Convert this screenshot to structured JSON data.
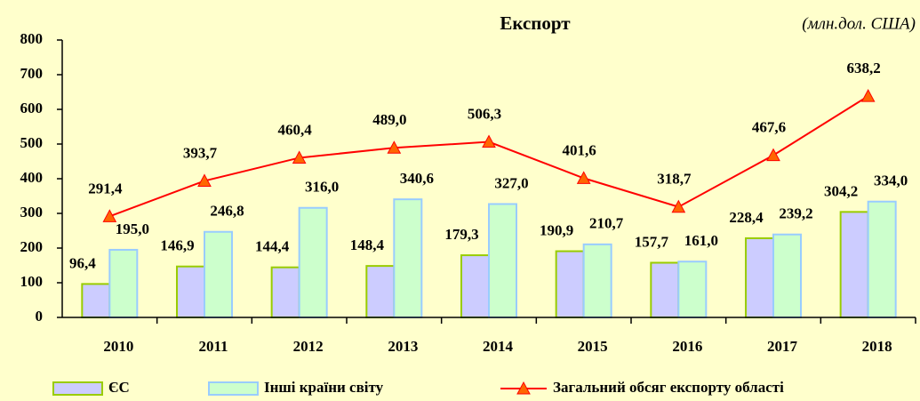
{
  "chart_data": {
    "type": "bar",
    "title": "Експорт",
    "subtitle": "(млн.дол. США)",
    "categories": [
      "2010",
      "2011",
      "2012",
      "2013",
      "2014",
      "2015",
      "2016",
      "2017",
      "2018"
    ],
    "series": [
      {
        "name": "ЄС",
        "type": "bar",
        "color": "#ccccff",
        "edge": "#99cc00",
        "values": [
          96.4,
          146.9,
          144.4,
          148.4,
          179.3,
          190.9,
          157.7,
          228.4,
          304.2
        ],
        "value_labels": [
          "96,4",
          "146,9",
          "144,4",
          "148,4",
          "179,3",
          "190,9",
          "157,7",
          "228,4",
          "304,2"
        ]
      },
      {
        "name": "Інші країни світу",
        "type": "bar",
        "color": "#ccffcc",
        "edge": "#99ccff",
        "values": [
          195.0,
          246.8,
          316.0,
          340.6,
          327.0,
          210.7,
          161.0,
          239.2,
          334.0
        ],
        "value_labels": [
          "195,0",
          "246,8",
          "316,0",
          "340,6",
          "327,0",
          "210,7",
          "161,0",
          "239,2",
          "334,0"
        ]
      },
      {
        "name": "Загальний обсяг експорту області",
        "type": "line",
        "color": "#ff0000",
        "marker": "#ff6600",
        "values": [
          291.4,
          393.7,
          460.4,
          489.0,
          506.3,
          401.6,
          318.7,
          467.6,
          638.2
        ],
        "value_labels": [
          "291,4",
          "393,7",
          "460,4",
          "489,0",
          "506,3",
          "401,6",
          "318,7",
          "467,6",
          "638,2"
        ]
      }
    ],
    "ylim": [
      0,
      800
    ],
    "yticks": [
      0,
      100,
      200,
      300,
      400,
      500,
      600,
      700,
      800
    ]
  }
}
